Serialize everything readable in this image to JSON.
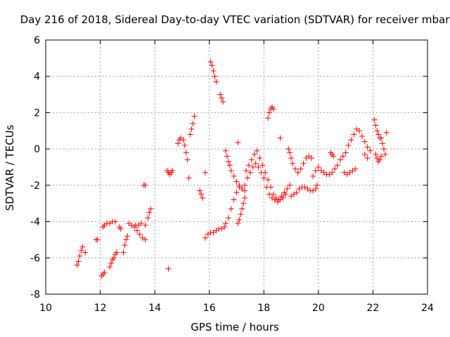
{
  "chart_data": {
    "type": "scatter",
    "title": "Day 216 of 2018, Sidereal Day-to-day VTEC variation (SDTVAR) for receiver mbar",
    "xlabel": "GPS time / hours",
    "ylabel": "SDTVAR / TECUs",
    "xlim": [
      10,
      24
    ],
    "ylim": [
      -8,
      6
    ],
    "xticks": [
      "10",
      "12",
      "14",
      "16",
      "18",
      "20",
      "22",
      "24"
    ],
    "yticks": [
      "-8",
      "-6",
      "-4",
      "-2",
      "0",
      "2",
      "4",
      "6"
    ],
    "grid": true,
    "marker": "+",
    "color": "#ff0000",
    "series": [
      {
        "name": "SDTVAR",
        "points": [
          [
            11.15,
            -6.4
          ],
          [
            11.2,
            -6.2
          ],
          [
            11.25,
            -5.9
          ],
          [
            11.3,
            -5.6
          ],
          [
            11.35,
            -5.4
          ],
          [
            11.45,
            -5.7
          ],
          [
            11.85,
            -5.0
          ],
          [
            11.9,
            -5.0
          ],
          [
            12.05,
            -7.0
          ],
          [
            12.1,
            -6.9
          ],
          [
            12.15,
            -6.8
          ],
          [
            12.1,
            -4.3
          ],
          [
            12.15,
            -4.2
          ],
          [
            12.25,
            -4.1
          ],
          [
            12.35,
            -4.1
          ],
          [
            12.45,
            -4.0
          ],
          [
            12.55,
            -4.0
          ],
          [
            12.35,
            -6.5
          ],
          [
            12.4,
            -6.3
          ],
          [
            12.45,
            -6.1
          ],
          [
            12.5,
            -6.0
          ],
          [
            12.55,
            -5.8
          ],
          [
            12.6,
            -5.7
          ],
          [
            12.7,
            -4.3
          ],
          [
            12.75,
            -4.4
          ],
          [
            12.85,
            -5.7
          ],
          [
            12.9,
            -5.3
          ],
          [
            12.95,
            -5.0
          ],
          [
            13.0,
            -4.8
          ],
          [
            13.05,
            -4.1
          ],
          [
            13.15,
            -4.2
          ],
          [
            13.25,
            -4.3
          ],
          [
            13.35,
            -4.5
          ],
          [
            13.45,
            -4.7
          ],
          [
            13.55,
            -4.9
          ],
          [
            13.65,
            -5.0
          ],
          [
            13.3,
            -4.2
          ],
          [
            13.4,
            -4.2
          ],
          [
            13.5,
            -4.1
          ],
          [
            13.6,
            -2.0
          ],
          [
            13.65,
            -2.0
          ],
          [
            13.65,
            -4.2
          ],
          [
            13.75,
            -3.8
          ],
          [
            13.8,
            -3.5
          ],
          [
            13.85,
            -3.3
          ],
          [
            14.45,
            -1.2
          ],
          [
            14.5,
            -1.3
          ],
          [
            14.55,
            -1.4
          ],
          [
            14.6,
            -1.3
          ],
          [
            14.65,
            -1.2
          ],
          [
            14.5,
            -6.6
          ],
          [
            14.85,
            0.3
          ],
          [
            14.9,
            0.5
          ],
          [
            14.95,
            0.6
          ],
          [
            15.05,
            0.5
          ],
          [
            15.1,
            0.2
          ],
          [
            15.15,
            -0.2
          ],
          [
            15.2,
            -0.6
          ],
          [
            15.3,
            0.8
          ],
          [
            15.35,
            1.1
          ],
          [
            15.4,
            1.4
          ],
          [
            15.45,
            1.8
          ],
          [
            15.25,
            -1.6
          ],
          [
            15.65,
            -2.3
          ],
          [
            15.7,
            -2.5
          ],
          [
            15.75,
            -2.7
          ],
          [
            15.85,
            -1.3
          ],
          [
            15.85,
            -4.9
          ],
          [
            15.95,
            -4.7
          ],
          [
            16.05,
            -4.6
          ],
          [
            16.15,
            -4.6
          ],
          [
            16.25,
            -4.5
          ],
          [
            16.35,
            -4.4
          ],
          [
            16.45,
            -4.4
          ],
          [
            16.55,
            -4.3
          ],
          [
            16.6,
            -4.1
          ],
          [
            16.7,
            -3.8
          ],
          [
            16.8,
            -3.3
          ],
          [
            16.9,
            -2.8
          ],
          [
            17.0,
            -2.4
          ],
          [
            17.1,
            -2.1
          ],
          [
            17.2,
            -2.2
          ],
          [
            17.3,
            -2.0
          ],
          [
            17.4,
            -1.6
          ],
          [
            17.5,
            -1.3
          ],
          [
            17.6,
            -1.0
          ],
          [
            17.7,
            -0.8
          ],
          [
            17.8,
            -1.0
          ],
          [
            17.9,
            -1.3
          ],
          [
            18.0,
            -1.6
          ],
          [
            18.1,
            -2.1
          ],
          [
            18.2,
            -2.5
          ],
          [
            18.3,
            -2.7
          ],
          [
            18.4,
            -2.8
          ],
          [
            18.5,
            -2.9
          ],
          [
            18.6,
            -2.8
          ],
          [
            18.7,
            -2.7
          ],
          [
            18.8,
            -2.5
          ],
          [
            16.05,
            4.8
          ],
          [
            16.1,
            4.6
          ],
          [
            16.15,
            4.3
          ],
          [
            16.2,
            4.0
          ],
          [
            16.25,
            3.7
          ],
          [
            16.4,
            3.0
          ],
          [
            16.45,
            2.8
          ],
          [
            16.5,
            2.6
          ],
          [
            16.6,
            -0.1
          ],
          [
            16.65,
            -0.4
          ],
          [
            16.7,
            -0.7
          ],
          [
            16.75,
            -0.9
          ],
          [
            16.8,
            -1.2
          ],
          [
            16.9,
            -1.5
          ],
          [
            17.0,
            -1.8
          ],
          [
            17.1,
            -2.0
          ],
          [
            17.2,
            -2.2
          ],
          [
            17.3,
            -2.3
          ],
          [
            17.05,
            -4.1
          ],
          [
            17.1,
            -3.9
          ],
          [
            17.15,
            -3.6
          ],
          [
            17.2,
            -3.3
          ],
          [
            17.25,
            -3.0
          ],
          [
            17.3,
            -2.7
          ],
          [
            17.05,
            0.35
          ],
          [
            17.35,
            -1.2
          ],
          [
            17.45,
            -0.9
          ],
          [
            17.55,
            -0.6
          ],
          [
            17.65,
            -0.3
          ],
          [
            17.75,
            -0.1
          ],
          [
            17.85,
            -0.5
          ],
          [
            17.95,
            -0.9
          ],
          [
            18.05,
            -1.3
          ],
          [
            18.15,
            -1.7
          ],
          [
            18.25,
            -2.1
          ],
          [
            18.35,
            -2.5
          ],
          [
            18.45,
            -2.7
          ],
          [
            18.55,
            -2.8
          ],
          [
            18.65,
            -2.6
          ],
          [
            18.75,
            -2.4
          ],
          [
            18.85,
            -2.2
          ],
          [
            18.95,
            -2.0
          ],
          [
            18.15,
            1.7
          ],
          [
            18.2,
            2.0
          ],
          [
            18.25,
            2.2
          ],
          [
            18.3,
            2.3
          ],
          [
            18.35,
            2.2
          ],
          [
            18.6,
            0.6
          ],
          [
            18.9,
            0.0
          ],
          [
            18.95,
            -0.2
          ],
          [
            19.0,
            -0.5
          ],
          [
            19.05,
            -0.8
          ],
          [
            19.15,
            -1.1
          ],
          [
            19.25,
            -1.3
          ],
          [
            19.35,
            -1.1
          ],
          [
            19.45,
            -0.8
          ],
          [
            19.55,
            -0.5
          ],
          [
            19.65,
            -0.4
          ],
          [
            19.75,
            -0.5
          ],
          [
            19.0,
            -2.6
          ],
          [
            19.1,
            -2.5
          ],
          [
            19.2,
            -2.4
          ],
          [
            19.3,
            -2.2
          ],
          [
            19.4,
            -2.1
          ],
          [
            19.5,
            -2.1
          ],
          [
            19.6,
            -2.2
          ],
          [
            19.7,
            -2.3
          ],
          [
            19.8,
            -2.3
          ],
          [
            19.9,
            -2.2
          ],
          [
            19.95,
            -2.0
          ],
          [
            19.8,
            -1.5
          ],
          [
            19.9,
            -1.2
          ],
          [
            20.0,
            -1.0
          ],
          [
            20.1,
            -1.2
          ],
          [
            20.2,
            -1.3
          ],
          [
            20.3,
            -1.4
          ],
          [
            20.4,
            -1.4
          ],
          [
            20.5,
            -1.3
          ],
          [
            20.6,
            -1.1
          ],
          [
            20.7,
            -0.9
          ],
          [
            20.8,
            -0.6
          ],
          [
            20.9,
            -0.4
          ],
          [
            21.0,
            -0.2
          ],
          [
            21.1,
            0.2
          ],
          [
            21.2,
            0.5
          ],
          [
            21.3,
            0.8
          ],
          [
            21.4,
            1.1
          ],
          [
            21.5,
            1.0
          ],
          [
            21.6,
            0.7
          ],
          [
            21.7,
            0.4
          ],
          [
            21.8,
            0.1
          ],
          [
            21.9,
            -0.1
          ],
          [
            20.45,
            -0.2
          ],
          [
            20.5,
            -0.3
          ],
          [
            20.55,
            -0.4
          ],
          [
            20.95,
            -1.3
          ],
          [
            21.05,
            -1.4
          ],
          [
            21.15,
            -1.3
          ],
          [
            21.25,
            -1.2
          ],
          [
            21.35,
            -1.1
          ],
          [
            21.7,
            -0.3
          ],
          [
            21.8,
            -0.5
          ],
          [
            22.05,
            1.6
          ],
          [
            22.1,
            1.3
          ],
          [
            22.15,
            1.0
          ],
          [
            22.2,
            0.8
          ],
          [
            22.25,
            0.6
          ],
          [
            22.1,
            -0.3
          ],
          [
            22.15,
            -0.5
          ],
          [
            22.2,
            -0.7
          ],
          [
            22.25,
            -0.6
          ],
          [
            22.3,
            -0.4
          ],
          [
            22.3,
            0.6
          ],
          [
            22.35,
            0.3
          ],
          [
            22.4,
            0.0
          ],
          [
            22.45,
            -0.3
          ],
          [
            22.5,
            0.9
          ]
        ]
      }
    ]
  }
}
